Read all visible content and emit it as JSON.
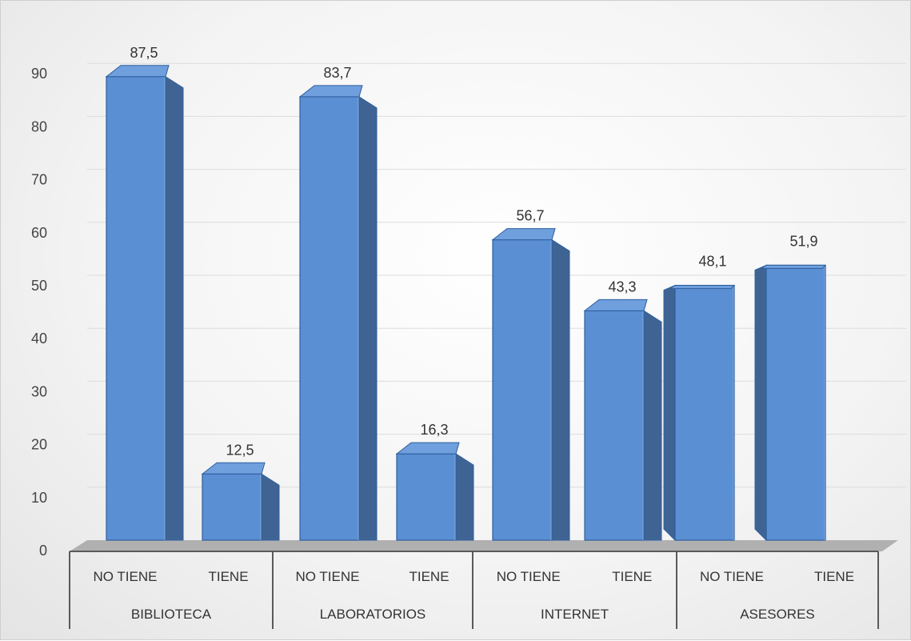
{
  "chart_data": {
    "type": "bar",
    "style": "3d-column",
    "title": "",
    "xlabel": "",
    "ylabel": "",
    "ylim": [
      0,
      90
    ],
    "yticks": [
      0,
      10,
      20,
      30,
      40,
      50,
      60,
      70,
      80,
      90
    ],
    "grid": true,
    "legend": "none",
    "groups": [
      "BIBLIOTECA",
      "LABORATORIOS",
      "INTERNET",
      "ASESORES"
    ],
    "subcategories": [
      "NO TIENE",
      "TIENE"
    ],
    "categories": [
      {
        "group": "BIBLIOTECA",
        "label": "NO TIENE"
      },
      {
        "group": "BIBLIOTECA",
        "label": "TIENE"
      },
      {
        "group": "LABORATORIOS",
        "label": "NO TIENE"
      },
      {
        "group": "LABORATORIOS",
        "label": "TIENE"
      },
      {
        "group": "INTERNET",
        "label": "NO TIENE"
      },
      {
        "group": "INTERNET",
        "label": "TIENE"
      },
      {
        "group": "ASESORES",
        "label": "NO TIENE"
      },
      {
        "group": "ASESORES",
        "label": "TIENE"
      }
    ],
    "values": [
      87.5,
      12.5,
      83.7,
      16.3,
      56.7,
      43.3,
      48.1,
      51.9
    ],
    "value_labels": [
      "87,5",
      "12,5",
      "83,7",
      "16,3",
      "56,7",
      "43,3",
      "48,1",
      "51,9"
    ],
    "colors": {
      "bar_front": "#5b8fd3",
      "bar_top": "#6f9fdc",
      "bar_side": "#3f6494",
      "bar_edge": "#2e5f9e",
      "floor": "#b0b0b0",
      "grid": "#dcdcdc",
      "axis": "#5a5a5a"
    }
  }
}
